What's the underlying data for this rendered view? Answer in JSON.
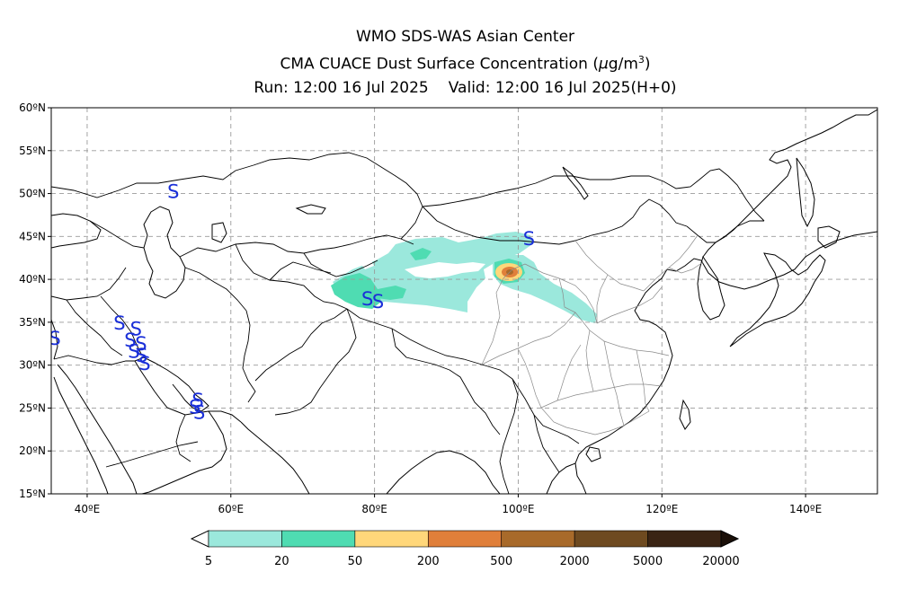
{
  "header": {
    "line1": "WMO SDS-WAS Asian Center",
    "line2_prefix": "CMA CUACE Dust Surface Concentration (",
    "line2_mu": "μ",
    "line2_unit": "g/m",
    "line2_exp": "3",
    "line2_suffix": ")",
    "run": "Run: 12:00 16 Jul 2025",
    "valid": "Valid: 12:00 16 Jul 2025(H+0)"
  },
  "map": {
    "lon_range": [
      35,
      150
    ],
    "lat_range": [
      15,
      60
    ],
    "lon_ticks": [
      {
        "value": 40,
        "label": "40ºE"
      },
      {
        "value": 60,
        "label": "60ºE"
      },
      {
        "value": 80,
        "label": "80ºE"
      },
      {
        "value": 100,
        "label": "100ºE"
      },
      {
        "value": 120,
        "label": "120ºE"
      },
      {
        "value": 140,
        "label": "140ºE"
      }
    ],
    "lat_ticks": [
      {
        "value": 15,
        "label": "15ºN"
      },
      {
        "value": 20,
        "label": "20ºN"
      },
      {
        "value": 25,
        "label": "25ºN"
      },
      {
        "value": 30,
        "label": "30ºN"
      },
      {
        "value": 35,
        "label": "35ºN"
      },
      {
        "value": 40,
        "label": "40ºN"
      },
      {
        "value": 45,
        "label": "45ºN"
      },
      {
        "value": 50,
        "label": "50ºN"
      },
      {
        "value": 55,
        "label": "55ºN"
      },
      {
        "value": 60,
        "label": "60ºN"
      }
    ],
    "gridlines": true
  },
  "colorbar": {
    "levels": [
      "5",
      "20",
      "50",
      "200",
      "500",
      "2000",
      "5000",
      "20000"
    ],
    "colors": [
      "#9be8dc",
      "#4fdcb2",
      "#ffd77a",
      "#e07f3a",
      "#a86a2a",
      "#6e4a20",
      "#3a2414"
    ],
    "extend_low_color": "#ffffff",
    "extend_high_color": "#1a0f08"
  },
  "dust_symbol": "S",
  "dust_symbol_color": "#1a2fd8",
  "dust_observations": [
    {
      "lon": 52,
      "lat": 50.3
    },
    {
      "lon": 101.5,
      "lat": 44.8
    },
    {
      "lon": 79,
      "lat": 37.8
    },
    {
      "lon": 80.5,
      "lat": 37.5
    },
    {
      "lon": 44.5,
      "lat": 35.0
    },
    {
      "lon": 46.8,
      "lat": 34.3
    },
    {
      "lon": 46.0,
      "lat": 33.0
    },
    {
      "lon": 47.5,
      "lat": 32.6
    },
    {
      "lon": 46.5,
      "lat": 31.7
    },
    {
      "lon": 47.6,
      "lat": 31.2
    },
    {
      "lon": 48.0,
      "lat": 30.3
    },
    {
      "lon": 35.5,
      "lat": 33.2
    },
    {
      "lon": 55.4,
      "lat": 26.0
    },
    {
      "lon": 55.0,
      "lat": 25.2
    },
    {
      "lon": 55.6,
      "lat": 24.6
    }
  ]
}
